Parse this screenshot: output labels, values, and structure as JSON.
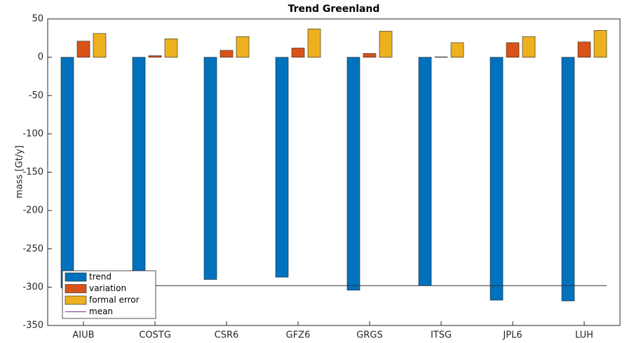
{
  "chart_data": {
    "type": "bar",
    "title": "Trend Greenland",
    "y_label": "mass [Gt/y]",
    "categories": [
      "AIUB",
      "COSTG",
      "CSR6",
      "GFZ6",
      "GRGS",
      "ITSG",
      "JPL6",
      "LUH"
    ],
    "series": [
      {
        "name": "trend",
        "color": "#0072bd",
        "values": [
          -301,
          -297,
          -290,
          -287,
          -304,
          -298,
          -317,
          -318
        ]
      },
      {
        "name": "variation",
        "color": "#d95319",
        "values": [
          21,
          2,
          9,
          12,
          5,
          0.5,
          19,
          20
        ]
      },
      {
        "name": "formal error",
        "color": "#edb120",
        "values": [
          31,
          24,
          27,
          37,
          34,
          19,
          27,
          35
        ]
      }
    ],
    "mean": {
      "name": "mean",
      "color": "#7e2f8e",
      "value": -298
    },
    "ylim": [
      -350,
      50
    ],
    "yticks": [
      -350,
      -300,
      -250,
      -200,
      -150,
      -100,
      -50,
      0,
      50
    ],
    "grid": false,
    "legend_position": "lower left"
  }
}
